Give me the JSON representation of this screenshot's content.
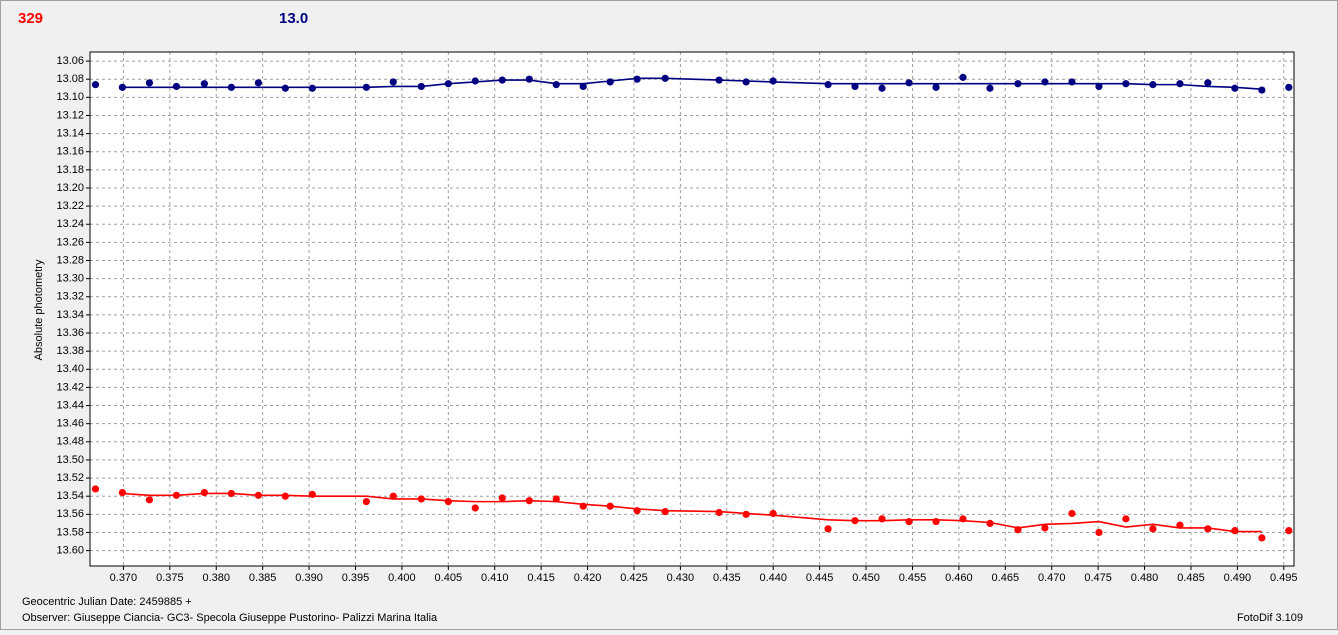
{
  "chart_data": {
    "type": "line",
    "header_left": "329",
    "header_left_color": "#ff0000",
    "header_right": "13.0",
    "header_right_color": "#000080",
    "y_label": "Absolute photometry",
    "x_label": "Geocentric Julian Date: 2459885 +",
    "observer": "Observer: Giuseppe Ciancia- GC3- Specola Giuseppe Pustorino- Palizzi Marina Italia",
    "software": "FotoDif 3.109",
    "grid": true,
    "y_inverted": true,
    "xlim": [
      0.3664,
      0.4961
    ],
    "ylim": [
      13.05,
      13.617
    ],
    "xticks": [
      {
        "value": 0.37,
        "label": "0.370"
      },
      0.375,
      {
        "value": 0.38,
        "label": "0.380"
      },
      0.385,
      {
        "value": 0.39,
        "label": "0.390"
      },
      0.395,
      {
        "value": 0.4,
        "label": "0.400"
      },
      0.405,
      {
        "value": 0.41,
        "label": "0.410"
      },
      0.415,
      {
        "value": 0.42,
        "label": "0.420"
      },
      0.425,
      {
        "value": 0.43,
        "label": "0.430"
      },
      0.435,
      {
        "value": 0.44,
        "label": "0.440"
      },
      0.445,
      {
        "value": 0.45,
        "label": "0.450"
      },
      0.455,
      {
        "value": 0.46,
        "label": "0.460"
      },
      0.465,
      {
        "value": 0.47,
        "label": "0.470"
      },
      0.475,
      {
        "value": 0.48,
        "label": "0.480"
      },
      0.485,
      {
        "value": 0.49,
        "label": "0.490"
      },
      0.495
    ],
    "yticks": [
      13.06,
      13.08,
      {
        "value": 13.1,
        "label": "13.10"
      },
      13.12,
      13.14,
      13.16,
      13.18,
      {
        "value": 13.2,
        "label": "13.20"
      },
      13.22,
      13.24,
      13.26,
      13.28,
      {
        "value": 13.3,
        "label": "13.30"
      },
      13.32,
      13.34,
      13.36,
      13.38,
      {
        "value": 13.4,
        "label": "13.40"
      },
      13.42,
      13.44,
      13.46,
      13.48,
      {
        "value": 13.5,
        "label": "13.50"
      },
      13.52,
      13.54,
      13.56,
      13.58,
      {
        "value": 13.6,
        "label": "13.60"
      }
    ],
    "x": [
      0.36699,
      0.36989,
      0.3728,
      0.37571,
      0.37872,
      0.38163,
      0.38454,
      0.38744,
      0.39035,
      0.39617,
      0.39907,
      0.40209,
      0.405,
      0.4079,
      0.41081,
      0.41372,
      0.41663,
      0.41953,
      0.42244,
      0.42534,
      0.42836,
      0.43417,
      0.43708,
      0.43999,
      0.44591,
      0.44881,
      0.45172,
      0.45463,
      0.45754,
      0.46044,
      0.46335,
      0.46636,
      0.46927,
      0.47218,
      0.47509,
      0.47799,
      0.4809,
      0.48381,
      0.48682,
      0.48973,
      0.49264,
      0.49554
    ],
    "series": [
      {
        "style": "markers",
        "color": "#000080",
        "values": [
          13.086,
          13.089,
          13.084,
          13.088,
          13.085,
          13.089,
          13.084,
          13.09,
          13.09,
          13.089,
          13.083,
          13.088,
          13.085,
          13.082,
          13.081,
          13.08,
          13.086,
          13.088,
          13.083,
          13.08,
          13.079,
          13.081,
          13.083,
          13.082,
          13.086,
          13.088,
          13.09,
          13.084,
          13.089,
          13.078,
          13.09,
          13.085,
          13.083,
          13.083,
          13.088,
          13.085,
          13.086,
          13.085,
          13.084,
          13.09,
          13.092,
          13.089
        ]
      },
      {
        "style": "line",
        "color": "#000080",
        "values": [
          null,
          13.089,
          13.089,
          13.089,
          13.089,
          13.089,
          13.089,
          13.089,
          13.089,
          13.089,
          13.088,
          13.088,
          13.085,
          13.083,
          13.081,
          13.081,
          13.085,
          13.085,
          13.082,
          13.079,
          13.079,
          13.081,
          13.082,
          13.083,
          13.085,
          13.085,
          13.085,
          13.085,
          13.085,
          13.085,
          13.085,
          13.085,
          13.085,
          13.085,
          13.085,
          13.085,
          13.086,
          13.086,
          13.088,
          13.089,
          13.091,
          null
        ]
      },
      {
        "style": "markers",
        "color": "#ff0000",
        "values": [
          13.532,
          13.536,
          13.544,
          13.539,
          13.536,
          13.537,
          13.539,
          13.54,
          13.538,
          13.546,
          13.54,
          13.543,
          13.546,
          13.553,
          13.542,
          13.545,
          13.543,
          13.551,
          13.551,
          13.556,
          13.557,
          13.558,
          13.56,
          13.559,
          13.576,
          13.567,
          13.565,
          13.568,
          13.568,
          13.565,
          13.57,
          13.577,
          13.575,
          13.559,
          13.58,
          13.565,
          13.576,
          13.572,
          13.576,
          13.578,
          13.586,
          13.578
        ]
      },
      {
        "style": "line",
        "color": "#ff0000",
        "values": [
          null,
          13.537,
          13.539,
          13.539,
          13.537,
          13.537,
          13.539,
          13.539,
          13.54,
          13.54,
          13.543,
          13.543,
          13.545,
          13.546,
          13.546,
          13.545,
          13.546,
          13.549,
          13.551,
          13.554,
          13.556,
          13.557,
          13.559,
          13.561,
          13.566,
          13.567,
          13.567,
          13.566,
          13.566,
          13.567,
          13.569,
          13.575,
          13.571,
          13.57,
          13.568,
          13.574,
          13.571,
          13.575,
          13.575,
          13.579,
          13.579,
          null
        ]
      }
    ]
  }
}
